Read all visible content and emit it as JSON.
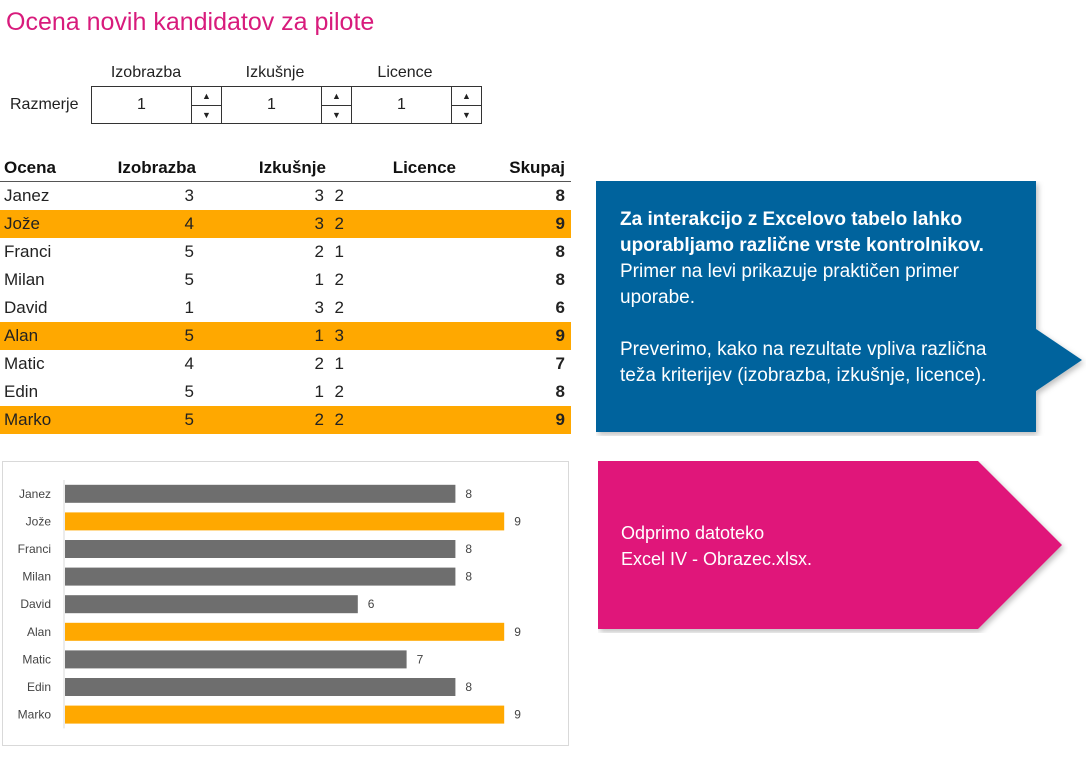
{
  "title": "Ocena novih kandidatov za pilote",
  "controls": {
    "row_label": "Razmerje",
    "items": [
      {
        "label": "Izobrazba",
        "value": "1"
      },
      {
        "label": "Izkušnje",
        "value": "1"
      },
      {
        "label": "Licence",
        "value": "1"
      }
    ]
  },
  "table": {
    "headers": [
      "Ocena",
      "Izobrazba",
      "Izkušnje",
      "Licence",
      "Skupaj"
    ],
    "rows": [
      {
        "name": "Janez",
        "izobrazba": 3,
        "izkusnje": 3,
        "licence": 2,
        "skupaj": 8,
        "highlight": false
      },
      {
        "name": "Jože",
        "izobrazba": 4,
        "izkusnje": 3,
        "licence": 2,
        "skupaj": 9,
        "highlight": true
      },
      {
        "name": "Franci",
        "izobrazba": 5,
        "izkusnje": 2,
        "licence": 1,
        "skupaj": 8,
        "highlight": false
      },
      {
        "name": "Milan",
        "izobrazba": 5,
        "izkusnje": 1,
        "licence": 2,
        "skupaj": 8,
        "highlight": false
      },
      {
        "name": "David",
        "izobrazba": 1,
        "izkusnje": 3,
        "licence": 2,
        "skupaj": 6,
        "highlight": false
      },
      {
        "name": "Alan",
        "izobrazba": 5,
        "izkusnje": 1,
        "licence": 3,
        "skupaj": 9,
        "highlight": true
      },
      {
        "name": "Matic",
        "izobrazba": 4,
        "izkusnje": 2,
        "licence": 1,
        "skupaj": 7,
        "highlight": false
      },
      {
        "name": "Edin",
        "izobrazba": 5,
        "izkusnje": 1,
        "licence": 2,
        "skupaj": 8,
        "highlight": false
      },
      {
        "name": "Marko",
        "izobrazba": 5,
        "izkusnje": 2,
        "licence": 2,
        "skupaj": 9,
        "highlight": true
      }
    ]
  },
  "chart_data": {
    "type": "bar",
    "orientation": "horizontal",
    "categories": [
      "Janez",
      "Jože",
      "Franci",
      "Milan",
      "David",
      "Alan",
      "Matic",
      "Edin",
      "Marko"
    ],
    "values": [
      8,
      9,
      8,
      8,
      6,
      9,
      7,
      8,
      9
    ],
    "highlight": [
      false,
      true,
      false,
      false,
      false,
      true,
      false,
      false,
      true
    ],
    "xlim": [
      0,
      9.5
    ],
    "title": "",
    "xlabel": "",
    "ylabel": "",
    "grid": false
  },
  "colors": {
    "accent_orange": "#ffa800",
    "bar_gray": "#6e6e6e",
    "title_pink": "#d81b7c",
    "callout_blue": "#05649d",
    "callout_pink": "#e0177a"
  },
  "callouts": {
    "blue": {
      "bold_line1": "Za interakcijo z Excelovo tabelo lahko",
      "bold_line2": "uporabljamo različne vrste kontrolnikov.",
      "line3": "Primer na levi prikazuje praktičen primer",
      "line4": "uporabe.",
      "line5": "Preverimo, kako na rezultate vpliva različna",
      "line6": "teža kriterijev (izobrazba, izkušnje, licence)."
    },
    "pink": {
      "line1": "Odprimo datoteko",
      "line2": "Excel IV - Obrazec.xlsx."
    }
  }
}
